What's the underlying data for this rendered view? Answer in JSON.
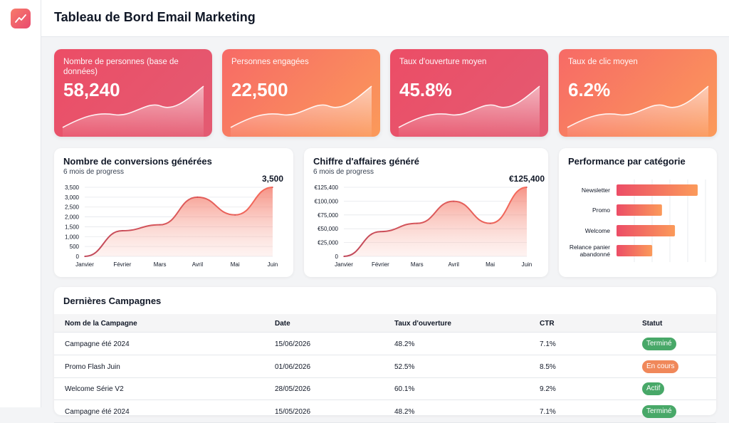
{
  "header": {
    "title": "Tableau de Bord Email Marketing"
  },
  "sidebar": {
    "logo_icon": "trending-up-icon"
  },
  "kpis": [
    {
      "label": "Nombre de personnes (base de données)",
      "value": "58,240"
    },
    {
      "label": "Personnes engagées",
      "value": "22,500"
    },
    {
      "label": "Taux d'ouverture moyen",
      "value": "45.8%"
    },
    {
      "label": "Taux de clic moyen",
      "value": "6.2%"
    }
  ],
  "colors": {
    "red": "#e94a6f",
    "orange": "#fb9a5a",
    "green": "#48a868",
    "badge_orange": "#f0885a"
  },
  "chart_data": [
    {
      "type": "area",
      "title": "Nombre de conversions générées",
      "subtitle": "6 mois de progress",
      "x": [
        "Janvier",
        "Février",
        "Mars",
        "Avril",
        "Mai",
        "Juin"
      ],
      "values": [
        0,
        1300,
        1600,
        3000,
        2100,
        3500
      ],
      "yticks": [
        "3,500",
        "3,000",
        "2,500",
        "2,000",
        "1,500",
        "1,000",
        "500",
        "0"
      ],
      "ylim": [
        0,
        3500
      ],
      "end_label": "3,500"
    },
    {
      "type": "area",
      "title": "Chiffre d'affaires généré",
      "subtitle": "6 mois de progress",
      "x": [
        "Janvier",
        "Février",
        "Mars",
        "Avril",
        "Mai",
        "Juin"
      ],
      "values": [
        0,
        45000,
        60000,
        100000,
        60000,
        125400
      ],
      "yticks": [
        "€125,400",
        "€100,000",
        "€75,000",
        "€50,000",
        "€25,000",
        "0"
      ],
      "ylim": [
        0,
        125400
      ],
      "end_label": "€125,400"
    },
    {
      "type": "bar",
      "title": "Performance par catégorie",
      "categories": [
        "Newsletter",
        "Promo",
        "Welcome",
        "Relance panier abandonné"
      ],
      "values": [
        100,
        56,
        72,
        44
      ]
    }
  ],
  "table": {
    "title": "Dernières Campagnes",
    "headers": [
      "Nom de la Campagne",
      "Date",
      "Taux d'ouverture",
      "CTR",
      "Statut"
    ],
    "rows": [
      {
        "name": "Campagne été 2024",
        "date": "15/06/2026",
        "open": "48.2%",
        "ctr": "7.1%",
        "status": "Terminé",
        "status_color": "#48a868"
      },
      {
        "name": "Promo Flash Juin",
        "date": "01/06/2026",
        "open": "52.5%",
        "ctr": "8.5%",
        "status": "En cours",
        "status_color": "#f0885a"
      },
      {
        "name": "Welcome Série V2",
        "date": "28/05/2026",
        "open": "60.1%",
        "ctr": "9.2%",
        "status": "Actif",
        "status_color": "#48a868"
      },
      {
        "name": "Campagne été 2024",
        "date": "15/05/2026",
        "open": "48.2%",
        "ctr": "7.1%",
        "status": "Terminé",
        "status_color": "#48a868"
      }
    ]
  }
}
